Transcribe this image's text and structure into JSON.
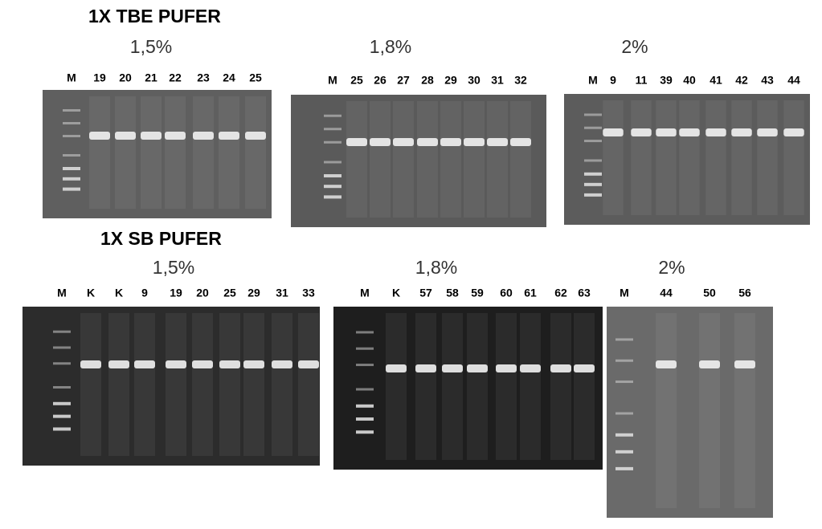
{
  "sections": [
    {
      "title": "1X TBE PUFER",
      "gels": [
        {
          "concentration": "1,5%",
          "lanes": [
            "M",
            "19",
            "20",
            "21",
            "22",
            "23",
            "24",
            "25"
          ]
        },
        {
          "concentration": "1,8%",
          "lanes": [
            "M",
            "25",
            "26",
            "27",
            "28",
            "29",
            "30",
            "31",
            "32"
          ]
        },
        {
          "concentration": "2%",
          "lanes": [
            "M",
            "9",
            "11",
            "39",
            "40",
            "41",
            "42",
            "43",
            "44"
          ]
        }
      ]
    },
    {
      "title": "1X SB PUFER",
      "gels": [
        {
          "concentration": "1,5%",
          "lanes": [
            "M",
            "K",
            "K",
            "9",
            "19",
            "20",
            "25",
            "29",
            "31",
            "33"
          ]
        },
        {
          "concentration": "1,8%",
          "lanes": [
            "M",
            "K",
            "57",
            "58",
            "59",
            "60",
            "61",
            "62",
            "63"
          ]
        },
        {
          "concentration": "2%",
          "lanes": [
            "M",
            "44",
            "50",
            "56"
          ]
        }
      ]
    }
  ]
}
